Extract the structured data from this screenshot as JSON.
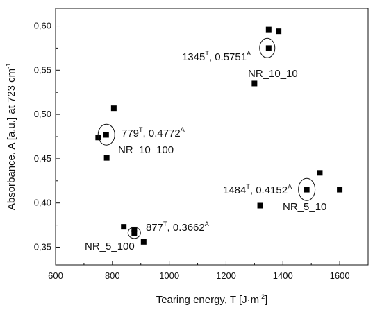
{
  "chart_data": {
    "type": "scatter",
    "xlabel": "Tearing energy, T [J·m",
    "xlabel_sup": "-2",
    "xlabel_end": "]",
    "ylabel": "Absorbance. A [a.u.] at 723 cm",
    "ylabel_sup": "-1",
    "xlim": [
      600,
      1700
    ],
    "ylim": [
      0.33,
      0.62
    ],
    "x_ticks": [
      600,
      800,
      1000,
      1200,
      1400,
      1600
    ],
    "x_tick_labels": [
      "600",
      "800",
      "1000",
      "1200",
      "1400",
      "1600"
    ],
    "y_ticks": [
      0.35,
      0.4,
      0.45,
      0.5,
      0.55,
      0.6
    ],
    "y_tick_labels": [
      "0,35",
      "0,40",
      "0,45",
      "0,50",
      "0,55",
      "0,60"
    ],
    "marker_color": "#000000",
    "points": [
      {
        "x": 1350,
        "y": 0.596
      },
      {
        "x": 1385,
        "y": 0.594
      },
      {
        "x": 1350,
        "y": 0.575
      },
      {
        "x": 1300,
        "y": 0.535
      },
      {
        "x": 805,
        "y": 0.507
      },
      {
        "x": 750,
        "y": 0.474
      },
      {
        "x": 778,
        "y": 0.477
      },
      {
        "x": 780,
        "y": 0.451
      },
      {
        "x": 1530,
        "y": 0.434
      },
      {
        "x": 1600,
        "y": 0.415
      },
      {
        "x": 1484,
        "y": 0.415
      },
      {
        "x": 1320,
        "y": 0.397
      },
      {
        "x": 840,
        "y": 0.373
      },
      {
        "x": 877,
        "y": 0.37
      },
      {
        "x": 877,
        "y": 0.366
      },
      {
        "x": 910,
        "y": 0.356
      }
    ],
    "annotations": [
      {
        "id": "nr_10_10",
        "x": 1345,
        "y": 0.5751,
        "t": "1345",
        "a": "0.5751",
        "group": "NR_10_10"
      },
      {
        "id": "nr_10_100",
        "x": 779,
        "y": 0.4772,
        "t": "779",
        "a": "0.4772",
        "group": "NR_10_100"
      },
      {
        "id": "nr_5_10",
        "x": 1484,
        "y": 0.4152,
        "t": "1484",
        "a": "0.4152",
        "group": "NR_5_10"
      },
      {
        "id": "nr_5_100",
        "x": 877,
        "y": 0.3662,
        "t": "877",
        "a": "0.3662",
        "group": "NR_5_100"
      }
    ],
    "sup_t": "T",
    "sup_a": "A",
    "sep": ", "
  }
}
